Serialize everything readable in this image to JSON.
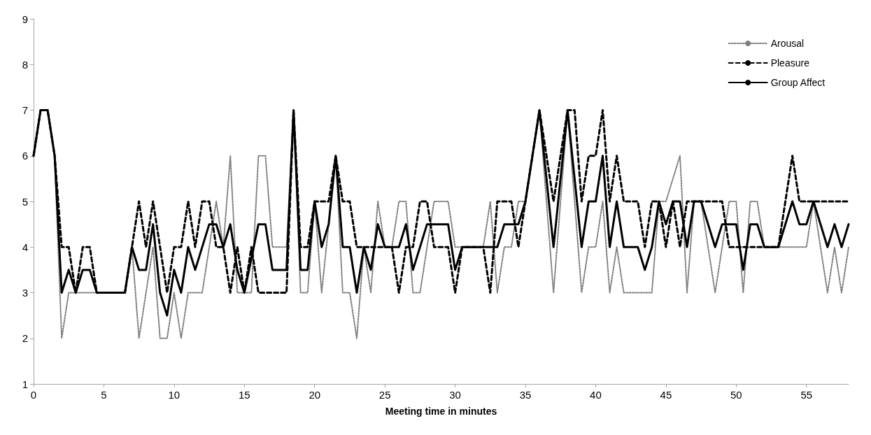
{
  "chart_data": {
    "type": "line",
    "xlabel": "Meeting time in minutes",
    "xlim": [
      0,
      58
    ],
    "xticks": [
      0,
      5,
      10,
      15,
      20,
      25,
      30,
      35,
      40,
      45,
      50,
      55
    ],
    "ylim": [
      1,
      9
    ],
    "yticks": [
      1,
      2,
      3,
      4,
      5,
      6,
      7,
      8,
      9
    ],
    "grid": false,
    "legend": "top right",
    "marker": "none",
    "series": [
      {
        "name": "Arousal",
        "color": "#808080",
        "line_style": "dotted",
        "x": [
          0,
          0.5,
          1,
          1.5,
          2,
          2.5,
          6.5,
          7,
          7.5,
          8.5,
          9,
          9.5,
          10,
          10.5,
          11,
          12,
          13,
          13.5,
          14,
          14.5,
          15,
          15.5,
          16,
          16.5,
          17,
          18,
          18.5,
          19,
          19.5,
          20,
          20.5,
          21.5,
          22,
          22.5,
          23,
          23.5,
          24,
          24.5,
          25,
          25.5,
          26,
          26.5,
          27,
          27.5,
          28,
          28.5,
          29.5,
          30,
          32,
          32.5,
          33,
          33.5,
          34,
          34.5,
          35,
          36,
          37,
          38,
          39,
          39.5,
          40,
          40.5,
          41,
          41.5,
          42,
          44,
          44.5,
          45,
          46,
          46.5,
          47,
          47.5,
          48.5,
          49.5,
          50,
          50.5,
          51,
          51.5,
          52,
          55,
          55.5,
          56.5,
          57,
          57.5,
          58
        ],
        "values": [
          6,
          7,
          7,
          6,
          2,
          3,
          3,
          4,
          2,
          4,
          2,
          2,
          3,
          2,
          3,
          3,
          5,
          4,
          6,
          3,
          3,
          3,
          6,
          6,
          4,
          4,
          7,
          3,
          3,
          5,
          3,
          6,
          3,
          3,
          2,
          4,
          3,
          5,
          4,
          4,
          5,
          5,
          3,
          3,
          4,
          5,
          5,
          4,
          4,
          5,
          3,
          4,
          4,
          5,
          5,
          7,
          3,
          7,
          3,
          4,
          4,
          5,
          3,
          4,
          3,
          3,
          5,
          5,
          6,
          3,
          5,
          5,
          3,
          5,
          5,
          3,
          5,
          5,
          4,
          4,
          5,
          3,
          4,
          3,
          4
        ]
      },
      {
        "name": "Pleasure",
        "color": "#000000",
        "line_style": "dashed",
        "x": [
          0,
          0.5,
          1,
          1.5,
          2,
          2.5,
          3,
          3.5,
          4,
          4.5,
          6.5,
          7,
          7.5,
          8,
          8.5,
          9.5,
          10,
          10.5,
          11,
          11.5,
          12,
          12.5,
          13,
          13.5,
          14,
          14.5,
          15,
          15.5,
          16,
          18,
          18.5,
          19,
          19.5,
          20,
          21,
          21.5,
          22,
          22.5,
          23,
          25.5,
          26,
          26.5,
          27,
          27.5,
          28,
          28.5,
          29.5,
          30,
          30.5,
          32,
          32.5,
          33,
          34,
          34.5,
          35,
          36,
          37,
          38,
          38.5,
          39,
          39.5,
          40,
          40.5,
          41,
          41.5,
          42,
          43,
          43.5,
          44,
          44.5,
          45,
          45.5,
          46,
          46.5,
          49,
          49.5,
          53,
          54,
          54.5,
          58
        ],
        "values": [
          6,
          7,
          7,
          6,
          4,
          4,
          3,
          4,
          4,
          3,
          3,
          4,
          5,
          4,
          5,
          3,
          4,
          4,
          5,
          4,
          5,
          5,
          4,
          4,
          3,
          4,
          3,
          4,
          3,
          3,
          7,
          4,
          4,
          5,
          5,
          6,
          5,
          5,
          4,
          4,
          3,
          4,
          4,
          5,
          5,
          4,
          4,
          3,
          4,
          4,
          3,
          5,
          5,
          4,
          5,
          7,
          5,
          7,
          7,
          5,
          6,
          6,
          7,
          5,
          6,
          5,
          5,
          4,
          5,
          5,
          4,
          5,
          4,
          5,
          5,
          4,
          4,
          6,
          5,
          5
        ]
      },
      {
        "name": "Group Affect",
        "color": "#000000",
        "line_style": "solid",
        "x": [
          0,
          0.5,
          1,
          1.5,
          2,
          2.5,
          3,
          3.5,
          4,
          4.5,
          6.5,
          7,
          7.5,
          8,
          8.5,
          9,
          9.5,
          10,
          10.5,
          11,
          11.5,
          12.5,
          13,
          13.5,
          14,
          14.5,
          15,
          16,
          16.5,
          17,
          18,
          18.5,
          19,
          19.5,
          20,
          20.5,
          21,
          21.5,
          22,
          22.5,
          23,
          23.5,
          24,
          24.5,
          25,
          26,
          26.5,
          27,
          28,
          29.5,
          30,
          30.5,
          33,
          33.5,
          34.5,
          35,
          36,
          37,
          38,
          39,
          39.5,
          40,
          40.5,
          41,
          41.5,
          42,
          43,
          43.5,
          44,
          44.5,
          45,
          45.5,
          46,
          46.5,
          47,
          47.5,
          48.5,
          49,
          50,
          50.5,
          51,
          51.5,
          52,
          53,
          54,
          54.5,
          55,
          55.5,
          56.5,
          57,
          57.5,
          58
        ],
        "values": [
          6,
          7,
          7,
          6,
          3,
          3.5,
          3,
          3.5,
          3.5,
          3,
          3,
          4,
          3.5,
          3.5,
          4.5,
          3,
          2.5,
          3.5,
          3,
          4,
          3.5,
          4.5,
          4.5,
          4,
          4.5,
          3.5,
          3,
          4.5,
          4.5,
          3.5,
          3.5,
          7,
          3.5,
          3.5,
          5,
          4,
          4.5,
          6,
          4,
          4,
          3,
          4,
          3.5,
          4.5,
          4,
          4,
          4.5,
          3.5,
          4.5,
          4.5,
          3.5,
          4,
          4,
          4.5,
          4.5,
          5,
          7,
          4,
          7,
          4,
          5,
          5,
          6,
          4,
          5,
          4,
          4,
          3.5,
          4,
          5,
          4.5,
          5,
          5,
          4,
          5,
          5,
          4,
          4.5,
          4.5,
          3.5,
          4.5,
          4.5,
          4,
          4,
          5,
          4.5,
          4.5,
          5,
          4,
          4.5,
          4,
          4.5
        ]
      }
    ]
  }
}
